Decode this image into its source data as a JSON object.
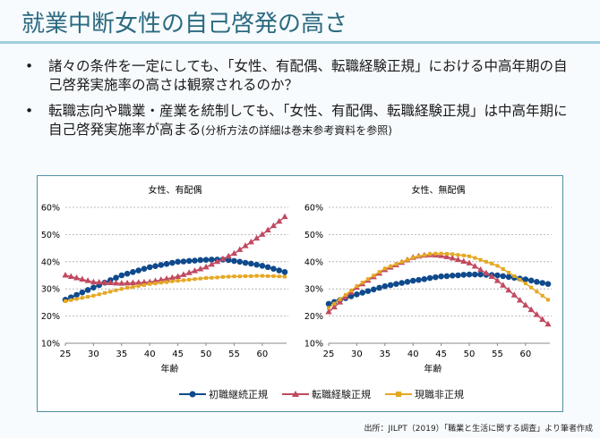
{
  "title": "就業中断女性の自己啓発の高さ",
  "bullets": [
    {
      "marker": "•",
      "text": "諸々の条件を一定にしても、「女性、有配偶、転職経験正規」における中高年期の自己啓発実施率の高さは観察されるのか？",
      "note": ""
    },
    {
      "marker": "•",
      "text": "転職志向や職業・産業を統制しても、「女性、有配偶、転職経験正規」は中高年期に自己啓発実施率が高まる",
      "note": "(分析方法の詳細は巻末参考資料を参照)"
    }
  ],
  "source": "出所：JILPT（2019）「職業と生活に関する調査」より筆者作成",
  "colors": {
    "初職継続正規": "#0f4a8c",
    "転職経験正規": "#c04a60",
    "現職非正規": "#e4a823"
  },
  "chart_data": [
    {
      "type": "line",
      "title": "女性、有配偶",
      "xlabel": "年齢",
      "ylabel": "",
      "xlim": [
        25,
        64
      ],
      "ylim": [
        10,
        60
      ],
      "xticks": [
        25,
        30,
        35,
        40,
        45,
        50,
        55,
        60
      ],
      "yticks": [
        "10%",
        "20%",
        "30%",
        "40%",
        "50%",
        "60%"
      ],
      "grid": "horizontal dashed",
      "x": [
        25,
        26,
        27,
        28,
        29,
        30,
        31,
        32,
        33,
        34,
        35,
        36,
        37,
        38,
        39,
        40,
        41,
        42,
        43,
        44,
        45,
        46,
        47,
        48,
        49,
        50,
        51,
        52,
        53,
        54,
        55,
        56,
        57,
        58,
        59,
        60,
        61,
        62,
        63,
        64
      ],
      "series": [
        {
          "name": "初職継続正規",
          "marker": "circle",
          "values": [
            26,
            26.9,
            27.8,
            28.7,
            29.6,
            30.5,
            31.4,
            32.3,
            33.2,
            34.1,
            35,
            35.6,
            36.2,
            36.8,
            37.4,
            38,
            38.4,
            38.8,
            39.2,
            39.6,
            40,
            40.1,
            40.3,
            40.4,
            40.6,
            40.7,
            40.8,
            40.8,
            40.8,
            40.6,
            40.3,
            40,
            39.6,
            39.3,
            38.9,
            38.5,
            38,
            37.4,
            36.8,
            36.2
          ]
        },
        {
          "name": "転職経験正規",
          "marker": "triangle",
          "values": [
            35,
            34.5,
            34,
            33.5,
            33,
            32.5,
            32.4,
            32.3,
            32.2,
            32.1,
            32,
            32.1,
            32.2,
            32.3,
            32.4,
            32.5,
            32.9,
            33.3,
            33.7,
            34.1,
            34.5,
            35.2,
            35.9,
            36.6,
            37.3,
            38,
            39,
            40,
            41,
            42,
            43,
            44.4,
            45.8,
            47.2,
            48.6,
            50,
            51.6,
            53.2,
            54.8,
            56.5
          ]
        },
        {
          "name": "現職非正規",
          "marker": "square",
          "values": [
            25.5,
            25.9,
            26.3,
            26.7,
            27.1,
            27.5,
            28,
            28.5,
            29,
            29.5,
            30,
            30.4,
            30.7,
            31.1,
            31.4,
            31.8,
            32,
            32.3,
            32.5,
            32.8,
            33,
            33.2,
            33.4,
            33.6,
            33.8,
            34,
            34.1,
            34.2,
            34.4,
            34.5,
            34.6,
            34.6,
            34.7,
            34.7,
            34.8,
            34.8,
            34.7,
            34.7,
            34.6,
            34.5
          ]
        }
      ]
    },
    {
      "type": "line",
      "title": "女性、無配偶",
      "xlabel": "年齢",
      "ylabel": "",
      "xlim": [
        25,
        64
      ],
      "ylim": [
        10,
        60
      ],
      "xticks": [
        25,
        30,
        35,
        40,
        45,
        50,
        55,
        60
      ],
      "yticks": [
        "10%",
        "20%",
        "30%",
        "40%",
        "50%",
        "60%"
      ],
      "grid": "horizontal dashed",
      "x": [
        25,
        26,
        27,
        28,
        29,
        30,
        31,
        32,
        33,
        34,
        35,
        36,
        37,
        38,
        39,
        40,
        41,
        42,
        43,
        44,
        45,
        46,
        47,
        48,
        49,
        50,
        51,
        52,
        53,
        54,
        55,
        56,
        57,
        58,
        59,
        60,
        61,
        62,
        63,
        64
      ],
      "series": [
        {
          "name": "初職継続正規",
          "marker": "circle",
          "values": [
            24.5,
            25.2,
            25.9,
            26.6,
            27.3,
            28,
            28.6,
            29.2,
            29.8,
            30.4,
            31,
            31.4,
            31.8,
            32.2,
            32.6,
            33,
            33.3,
            33.6,
            34,
            34.3,
            34.6,
            34.7,
            34.9,
            35,
            35.2,
            35.3,
            35.3,
            35.3,
            35.2,
            35.1,
            35,
            34.7,
            34.4,
            34.1,
            33.8,
            33.5,
            33.1,
            32.6,
            32.2,
            31.8
          ]
        },
        {
          "name": "転職経験正規",
          "marker": "triangle",
          "values": [
            21.5,
            23.3,
            25.1,
            26.9,
            28.7,
            30.5,
            31.8,
            33.1,
            34.4,
            35.7,
            37,
            37.9,
            38.8,
            39.7,
            40.6,
            41.5,
            42,
            42.3,
            42.5,
            42.4,
            42.2,
            41.8,
            41.3,
            40.7,
            40.1,
            39.5,
            38.3,
            37,
            35.8,
            34.5,
            33,
            31.3,
            29.5,
            27.7,
            25.8,
            24,
            22.3,
            20.5,
            18.7,
            17
          ]
        },
        {
          "name": "現職非正規",
          "marker": "square",
          "values": [
            23,
            24.6,
            26.2,
            27.8,
            29.4,
            31,
            32.3,
            33.6,
            34.9,
            36.2,
            37.5,
            38.3,
            39.1,
            39.9,
            40.7,
            41.5,
            42,
            42.4,
            42.8,
            43,
            43,
            42.9,
            42.8,
            42.5,
            42.3,
            42,
            41.4,
            40.7,
            40,
            39.3,
            38.5,
            37.3,
            36,
            34.7,
            33.4,
            32,
            30.5,
            29,
            27.5,
            26
          ]
        }
      ]
    }
  ]
}
